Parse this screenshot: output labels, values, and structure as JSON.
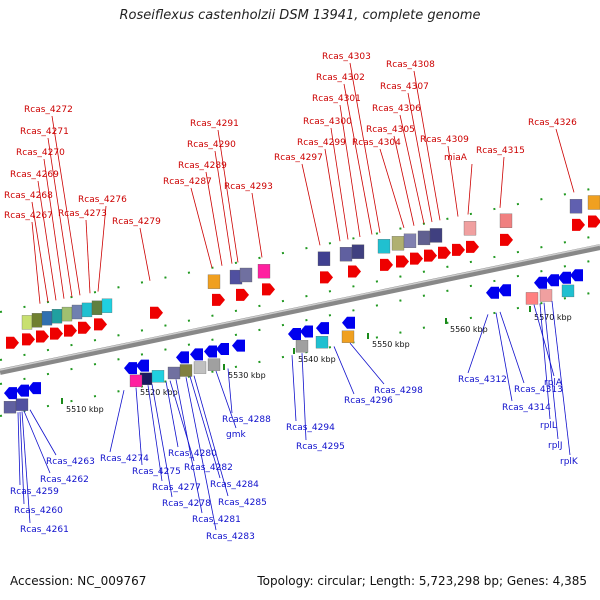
{
  "title": "Roseiflexus castenholzii DSM 13941, complete genome",
  "footer": {
    "accession": "Accession: NC_009767",
    "summary": "Topology: circular; Length: 5,723,298 bp; Genes: 4,385"
  },
  "scale_labels": [
    "5510 kbp",
    "5520 kbp",
    "5530 kbp",
    "5540 kbp",
    "5550 kbp",
    "5560 kbp",
    "5570 kbp"
  ],
  "forward_genes": [
    "Rcas_4267",
    "Rcas_4268",
    "Rcas_4269",
    "Rcas_4270",
    "Rcas_4271",
    "Rcas_4272",
    "Rcas_4273",
    "Rcas_4276",
    "Rcas_4279",
    "Rcas_4287",
    "Rcas_4289",
    "Rcas_4290",
    "Rcas_4291",
    "Rcas_4293",
    "Rcas_4297",
    "Rcas_4299",
    "Rcas_4300",
    "Rcas_4301",
    "Rcas_4302",
    "Rcas_4303",
    "Rcas_4304",
    "Rcas_4305",
    "Rcas_4306",
    "Rcas_4307",
    "Rcas_4308",
    "Rcas_4309",
    "miaA",
    "Rcas_4315",
    "Rcas_4326"
  ],
  "reverse_genes": [
    "Rcas_4263",
    "Rcas_4262",
    "Rcas_4259",
    "Rcas_4260",
    "Rcas_4261",
    "Rcas_4274",
    "Rcas_4275",
    "Rcas_4277",
    "Rcas_4278",
    "Rcas_4280",
    "Rcas_4281",
    "Rcas_4282",
    "Rcas_4283",
    "Rcas_4284",
    "Rcas_4285",
    "gmk",
    "Rcas_4288",
    "Rcas_4294",
    "Rcas_4295",
    "Rcas_4296",
    "Rcas_4298",
    "Rcas_4312",
    "Rcas_4313",
    "Rcas_4314",
    "rplA",
    "rplL",
    "rplJ",
    "rplK"
  ],
  "colors": {
    "forward_label": "#cc0000",
    "reverse_label": "#1010cc",
    "backbone": "#888888",
    "forward_arrow": "#ee0000",
    "reverse_arrow": "#0000ee"
  }
}
